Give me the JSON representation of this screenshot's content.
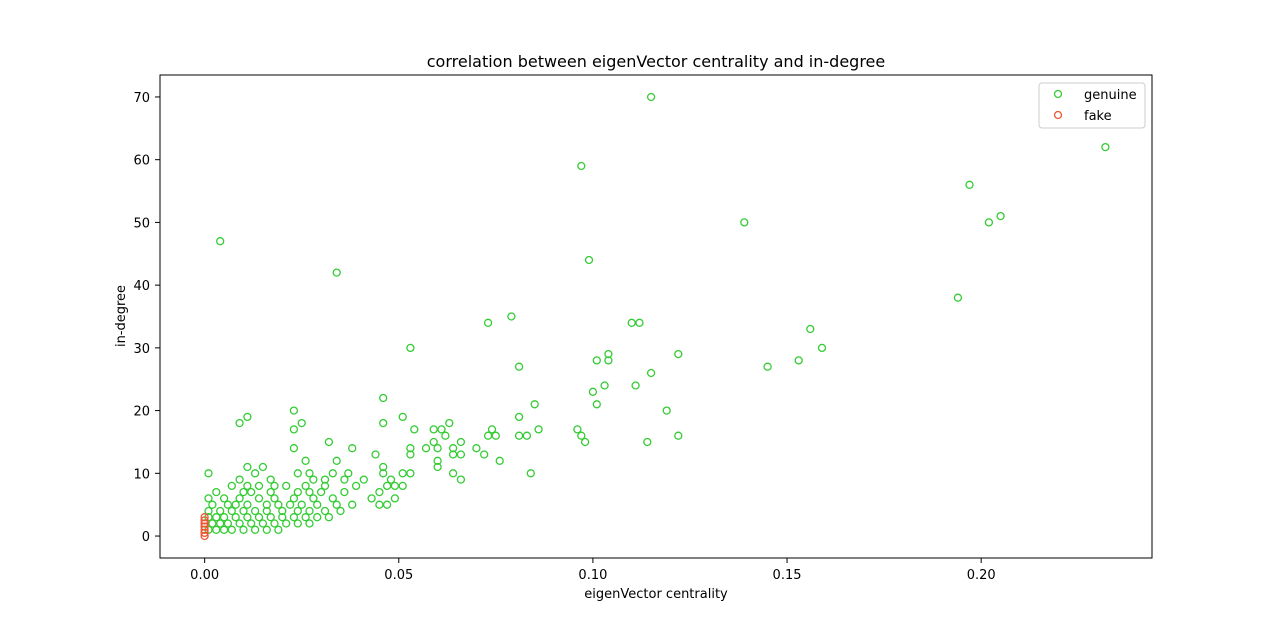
{
  "chart_data": {
    "type": "scatter",
    "title": "correlation between eigenVector centrality and in-degree",
    "xlabel": "eigenVector centrality",
    "ylabel": "in-degree",
    "xlim": [
      -0.0115,
      0.244
    ],
    "ylim": [
      -3.5,
      73.5
    ],
    "xticks": [
      0.0,
      0.05,
      0.1,
      0.15,
      0.2
    ],
    "xtick_labels": [
      "0.00",
      "0.05",
      "0.10",
      "0.15",
      "0.20"
    ],
    "yticks": [
      0,
      10,
      20,
      30,
      40,
      50,
      60,
      70
    ],
    "ytick_labels": [
      "0",
      "10",
      "20",
      "30",
      "40",
      "50",
      "60",
      "70"
    ],
    "grid": false,
    "legend_position": "top-right",
    "series": [
      {
        "name": "genuine",
        "color": "#33cc33",
        "marker": "hollow-circle",
        "points": [
          [
            0.115,
            70
          ],
          [
            0.232,
            62
          ],
          [
            0.097,
            59
          ],
          [
            0.197,
            56
          ],
          [
            0.205,
            51
          ],
          [
            0.202,
            50
          ],
          [
            0.139,
            50
          ],
          [
            0.004,
            47
          ],
          [
            0.099,
            44
          ],
          [
            0.034,
            42
          ],
          [
            0.194,
            38
          ],
          [
            0.079,
            35
          ],
          [
            0.073,
            34
          ],
          [
            0.11,
            34
          ],
          [
            0.112,
            34
          ],
          [
            0.156,
            33
          ],
          [
            0.053,
            30
          ],
          [
            0.159,
            30
          ],
          [
            0.122,
            29
          ],
          [
            0.104,
            29
          ],
          [
            0.101,
            28
          ],
          [
            0.104,
            28
          ],
          [
            0.153,
            28
          ],
          [
            0.081,
            27
          ],
          [
            0.145,
            27
          ],
          [
            0.115,
            26
          ],
          [
            0.103,
            24
          ],
          [
            0.111,
            24
          ],
          [
            0.1,
            23
          ],
          [
            0.046,
            22
          ],
          [
            0.085,
            21
          ],
          [
            0.101,
            21
          ],
          [
            0.023,
            20
          ],
          [
            0.119,
            20
          ],
          [
            0.011,
            19
          ],
          [
            0.051,
            19
          ],
          [
            0.081,
            19
          ],
          [
            0.009,
            18
          ],
          [
            0.025,
            18
          ],
          [
            0.046,
            18
          ],
          [
            0.063,
            18
          ],
          [
            0.023,
            17
          ],
          [
            0.054,
            17
          ],
          [
            0.059,
            17
          ],
          [
            0.061,
            17
          ],
          [
            0.074,
            17
          ],
          [
            0.086,
            17
          ],
          [
            0.096,
            17
          ],
          [
            0.062,
            16
          ],
          [
            0.073,
            16
          ],
          [
            0.075,
            16
          ],
          [
            0.081,
            16
          ],
          [
            0.083,
            16
          ],
          [
            0.097,
            16
          ],
          [
            0.122,
            16
          ],
          [
            0.032,
            15
          ],
          [
            0.059,
            15
          ],
          [
            0.066,
            15
          ],
          [
            0.098,
            15
          ],
          [
            0.114,
            15
          ],
          [
            0.023,
            14
          ],
          [
            0.038,
            14
          ],
          [
            0.053,
            14
          ],
          [
            0.057,
            14
          ],
          [
            0.06,
            14
          ],
          [
            0.064,
            14
          ],
          [
            0.07,
            14
          ],
          [
            0.044,
            13
          ],
          [
            0.053,
            13
          ],
          [
            0.064,
            13
          ],
          [
            0.066,
            13
          ],
          [
            0.072,
            13
          ],
          [
            0.06,
            12
          ],
          [
            0.026,
            12
          ],
          [
            0.034,
            12
          ],
          [
            0.076,
            12
          ],
          [
            0.011,
            11
          ],
          [
            0.015,
            11
          ],
          [
            0.046,
            11
          ],
          [
            0.06,
            11
          ],
          [
            0.001,
            10
          ],
          [
            0.013,
            10
          ],
          [
            0.024,
            10
          ],
          [
            0.027,
            10
          ],
          [
            0.033,
            10
          ],
          [
            0.037,
            10
          ],
          [
            0.046,
            10
          ],
          [
            0.051,
            10
          ],
          [
            0.053,
            10
          ],
          [
            0.064,
            10
          ],
          [
            0.084,
            10
          ],
          [
            0.009,
            9
          ],
          [
            0.017,
            9
          ],
          [
            0.028,
            9
          ],
          [
            0.031,
            9
          ],
          [
            0.036,
            9
          ],
          [
            0.041,
            9
          ],
          [
            0.048,
            9
          ],
          [
            0.066,
            9
          ],
          [
            0.007,
            8
          ],
          [
            0.011,
            8
          ],
          [
            0.014,
            8
          ],
          [
            0.018,
            8
          ],
          [
            0.021,
            8
          ],
          [
            0.026,
            8
          ],
          [
            0.031,
            8
          ],
          [
            0.039,
            8
          ],
          [
            0.047,
            8
          ],
          [
            0.049,
            8
          ],
          [
            0.051,
            8
          ],
          [
            0.003,
            7
          ],
          [
            0.01,
            7
          ],
          [
            0.012,
            7
          ],
          [
            0.017,
            7
          ],
          [
            0.024,
            7
          ],
          [
            0.027,
            7
          ],
          [
            0.03,
            7
          ],
          [
            0.036,
            7
          ],
          [
            0.045,
            7
          ],
          [
            0.001,
            6
          ],
          [
            0.005,
            6
          ],
          [
            0.009,
            6
          ],
          [
            0.014,
            6
          ],
          [
            0.018,
            6
          ],
          [
            0.023,
            6
          ],
          [
            0.028,
            6
          ],
          [
            0.033,
            6
          ],
          [
            0.043,
            6
          ],
          [
            0.049,
            6
          ],
          [
            0.002,
            5
          ],
          [
            0.006,
            5
          ],
          [
            0.008,
            5
          ],
          [
            0.011,
            5
          ],
          [
            0.016,
            5
          ],
          [
            0.019,
            5
          ],
          [
            0.022,
            5
          ],
          [
            0.025,
            5
          ],
          [
            0.029,
            5
          ],
          [
            0.034,
            5
          ],
          [
            0.038,
            5
          ],
          [
            0.045,
            5
          ],
          [
            0.047,
            5
          ],
          [
            0.001,
            4
          ],
          [
            0.004,
            4
          ],
          [
            0.007,
            4
          ],
          [
            0.01,
            4
          ],
          [
            0.013,
            4
          ],
          [
            0.016,
            4
          ],
          [
            0.02,
            4
          ],
          [
            0.024,
            4
          ],
          [
            0.027,
            4
          ],
          [
            0.031,
            4
          ],
          [
            0.035,
            4
          ],
          [
            0.001,
            3
          ],
          [
            0.003,
            3
          ],
          [
            0.005,
            3
          ],
          [
            0.008,
            3
          ],
          [
            0.011,
            3
          ],
          [
            0.014,
            3
          ],
          [
            0.017,
            3
          ],
          [
            0.02,
            3
          ],
          [
            0.023,
            3
          ],
          [
            0.026,
            3
          ],
          [
            0.029,
            3
          ],
          [
            0.032,
            3
          ],
          [
            0.002,
            2
          ],
          [
            0.004,
            2
          ],
          [
            0.006,
            2
          ],
          [
            0.009,
            2
          ],
          [
            0.012,
            2
          ],
          [
            0.015,
            2
          ],
          [
            0.018,
            2
          ],
          [
            0.021,
            2
          ],
          [
            0.024,
            2
          ],
          [
            0.027,
            2
          ],
          [
            0.001,
            1
          ],
          [
            0.003,
            1
          ],
          [
            0.005,
            1
          ],
          [
            0.007,
            1
          ],
          [
            0.01,
            1
          ],
          [
            0.013,
            1
          ],
          [
            0.016,
            1
          ],
          [
            0.019,
            1
          ]
        ]
      },
      {
        "name": "fake",
        "color": "#ee5533",
        "marker": "hollow-circle",
        "points": [
          [
            0.0,
            0
          ],
          [
            0.0,
            0.5
          ],
          [
            0.0,
            1
          ],
          [
            0.0,
            1.5
          ],
          [
            0.0,
            2
          ],
          [
            0.0,
            2.5
          ],
          [
            0.0,
            3
          ]
        ]
      }
    ]
  }
}
